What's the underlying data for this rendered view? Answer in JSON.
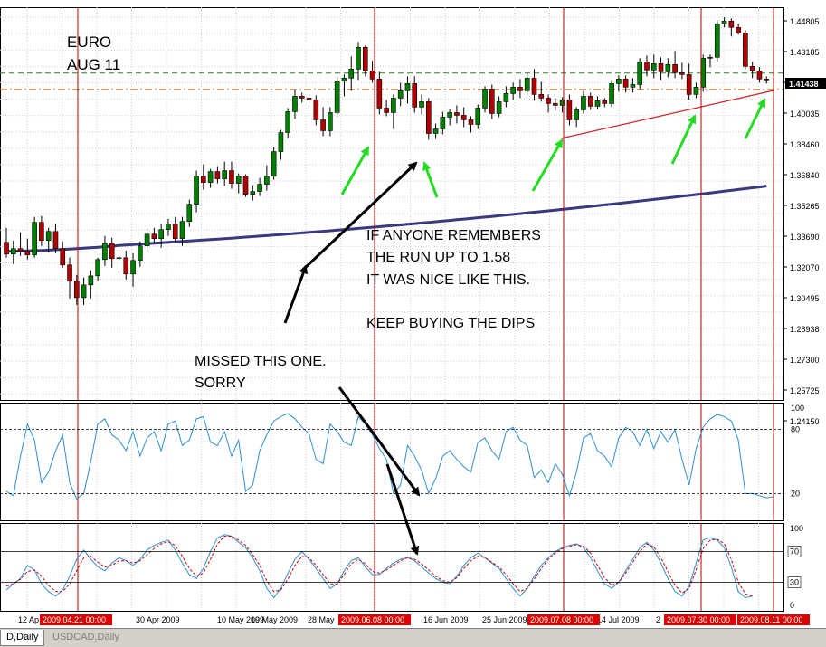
{
  "chart_data": {
    "type": "candlestick",
    "symbol_note": [
      "EURO",
      "AUG 11"
    ],
    "y_ticks": [
      "1.44805",
      "1.43185",
      "1.41438",
      "1.40035",
      "1.38460",
      "1.36840",
      "1.35265",
      "1.33690",
      "1.32070",
      "1.30495",
      "1.28938",
      "1.27300",
      "1.25725",
      "1.24150"
    ],
    "current_price": "1.41438",
    "x_labels": [
      "12 Ap",
      "30 Apr 2009",
      "10 May 2009",
      "19 May 2009",
      "28 May",
      "16 Jun 2009",
      "25 Jun 2009",
      "14 Jul 2009",
      "2"
    ],
    "date_markers": [
      "2009.04.21 00:00",
      "2009.06.08 00:00",
      "2009.07.08 00:00",
      "2009.07.30 00:00",
      "2009.08.11 00:00"
    ],
    "annotations": {
      "buy_dips": [
        "IF ANYONE REMEMBERS",
        "THE RUN UP TO 1.58",
        "IT WAS NICE LIKE THIS.",
        "",
        "KEEP BUYING THE DIPS"
      ],
      "missed": [
        "MISSED THIS ONE.",
        "SORRY"
      ]
    },
    "moving_average": {
      "from": 1.3195,
      "to": 1.3555
    },
    "candles": [
      {
        "o": 1.3245,
        "h": 1.3325,
        "l": 1.316,
        "c": 1.318
      },
      {
        "o": 1.318,
        "h": 1.3255,
        "l": 1.3125,
        "c": 1.321
      },
      {
        "o": 1.321,
        "h": 1.33,
        "l": 1.317,
        "c": 1.3195
      },
      {
        "o": 1.3195,
        "h": 1.3265,
        "l": 1.315,
        "c": 1.3175
      },
      {
        "o": 1.3175,
        "h": 1.3385,
        "l": 1.316,
        "c": 1.3355
      },
      {
        "o": 1.3355,
        "h": 1.339,
        "l": 1.3225,
        "c": 1.3255
      },
      {
        "o": 1.3255,
        "h": 1.3325,
        "l": 1.319,
        "c": 1.3305
      },
      {
        "o": 1.3305,
        "h": 1.3345,
        "l": 1.3185,
        "c": 1.321
      },
      {
        "o": 1.321,
        "h": 1.325,
        "l": 1.3105,
        "c": 1.312
      },
      {
        "o": 1.312,
        "h": 1.316,
        "l": 1.2935,
        "c": 1.303
      },
      {
        "o": 1.303,
        "h": 1.3065,
        "l": 1.29,
        "c": 1.294
      },
      {
        "o": 1.294,
        "h": 1.305,
        "l": 1.29,
        "c": 1.301
      },
      {
        "o": 1.301,
        "h": 1.309,
        "l": 1.2935,
        "c": 1.306
      },
      {
        "o": 1.306,
        "h": 1.316,
        "l": 1.303,
        "c": 1.315
      },
      {
        "o": 1.315,
        "h": 1.328,
        "l": 1.3115,
        "c": 1.324
      },
      {
        "o": 1.324,
        "h": 1.327,
        "l": 1.3105,
        "c": 1.3155
      },
      {
        "o": 1.3155,
        "h": 1.3205,
        "l": 1.3075,
        "c": 1.316
      },
      {
        "o": 1.316,
        "h": 1.32,
        "l": 1.304,
        "c": 1.307
      },
      {
        "o": 1.307,
        "h": 1.3185,
        "l": 1.3,
        "c": 1.3145
      },
      {
        "o": 1.3145,
        "h": 1.325,
        "l": 1.311,
        "c": 1.3225
      },
      {
        "o": 1.3225,
        "h": 1.332,
        "l": 1.3195,
        "c": 1.329
      },
      {
        "o": 1.329,
        "h": 1.3325,
        "l": 1.324,
        "c": 1.3265
      },
      {
        "o": 1.3265,
        "h": 1.3345,
        "l": 1.3215,
        "c": 1.3315
      },
      {
        "o": 1.3315,
        "h": 1.3375,
        "l": 1.328,
        "c": 1.3345
      },
      {
        "o": 1.3345,
        "h": 1.3385,
        "l": 1.3245,
        "c": 1.3265
      },
      {
        "o": 1.3265,
        "h": 1.3385,
        "l": 1.3225,
        "c": 1.336
      },
      {
        "o": 1.336,
        "h": 1.348,
        "l": 1.333,
        "c": 1.3455
      },
      {
        "o": 1.3455,
        "h": 1.364,
        "l": 1.341,
        "c": 1.361
      },
      {
        "o": 1.361,
        "h": 1.3675,
        "l": 1.3535,
        "c": 1.3575
      },
      {
        "o": 1.3575,
        "h": 1.365,
        "l": 1.3545,
        "c": 1.3635
      },
      {
        "o": 1.3635,
        "h": 1.3665,
        "l": 1.357,
        "c": 1.3595
      },
      {
        "o": 1.3595,
        "h": 1.369,
        "l": 1.3555,
        "c": 1.364
      },
      {
        "o": 1.364,
        "h": 1.369,
        "l": 1.354,
        "c": 1.357
      },
      {
        "o": 1.357,
        "h": 1.3625,
        "l": 1.3515,
        "c": 1.361
      },
      {
        "o": 1.361,
        "h": 1.362,
        "l": 1.3495,
        "c": 1.351
      },
      {
        "o": 1.351,
        "h": 1.356,
        "l": 1.3475,
        "c": 1.3525
      },
      {
        "o": 1.3525,
        "h": 1.36,
        "l": 1.35,
        "c": 1.3565
      },
      {
        "o": 1.3565,
        "h": 1.367,
        "l": 1.353,
        "c": 1.361
      },
      {
        "o": 1.361,
        "h": 1.377,
        "l": 1.359,
        "c": 1.3745
      },
      {
        "o": 1.3745,
        "h": 1.3865,
        "l": 1.37,
        "c": 1.385
      },
      {
        "o": 1.385,
        "h": 1.3985,
        "l": 1.382,
        "c": 1.3965
      },
      {
        "o": 1.3965,
        "h": 1.4085,
        "l": 1.3925,
        "c": 1.405
      },
      {
        "o": 1.405,
        "h": 1.407,
        "l": 1.4015,
        "c": 1.404
      },
      {
        "o": 1.404,
        "h": 1.406,
        "l": 1.401,
        "c": 1.403
      },
      {
        "o": 1.403,
        "h": 1.4055,
        "l": 1.389,
        "c": 1.392
      },
      {
        "o": 1.392,
        "h": 1.399,
        "l": 1.383,
        "c": 1.386
      },
      {
        "o": 1.386,
        "h": 1.399,
        "l": 1.383,
        "c": 1.396
      },
      {
        "o": 1.396,
        "h": 1.416,
        "l": 1.394,
        "c": 1.4135
      },
      {
        "o": 1.4135,
        "h": 1.417,
        "l": 1.405,
        "c": 1.415
      },
      {
        "o": 1.415,
        "h": 1.427,
        "l": 1.408,
        "c": 1.42
      },
      {
        "o": 1.42,
        "h": 1.435,
        "l": 1.414,
        "c": 1.432
      },
      {
        "o": 1.432,
        "h": 1.433,
        "l": 1.416,
        "c": 1.419
      },
      {
        "o": 1.419,
        "h": 1.4245,
        "l": 1.4125,
        "c": 1.4145
      },
      {
        "o": 1.4145,
        "h": 1.4185,
        "l": 1.395,
        "c": 1.3985
      },
      {
        "o": 1.3985,
        "h": 1.403,
        "l": 1.394,
        "c": 1.396
      },
      {
        "o": 1.396,
        "h": 1.406,
        "l": 1.387,
        "c": 1.404
      },
      {
        "o": 1.404,
        "h": 1.4125,
        "l": 1.3995,
        "c": 1.408
      },
      {
        "o": 1.408,
        "h": 1.416,
        "l": 1.401,
        "c": 1.412
      },
      {
        "o": 1.412,
        "h": 1.416,
        "l": 1.396,
        "c": 1.399
      },
      {
        "o": 1.399,
        "h": 1.406,
        "l": 1.395,
        "c": 1.402
      },
      {
        "o": 1.402,
        "h": 1.404,
        "l": 1.381,
        "c": 1.3845
      },
      {
        "o": 1.3845,
        "h": 1.39,
        "l": 1.3815,
        "c": 1.387
      },
      {
        "o": 1.387,
        "h": 1.3965,
        "l": 1.384,
        "c": 1.3935
      },
      {
        "o": 1.3935,
        "h": 1.398,
        "l": 1.389,
        "c": 1.396
      },
      {
        "o": 1.396,
        "h": 1.4,
        "l": 1.39,
        "c": 1.3945
      },
      {
        "o": 1.3945,
        "h": 1.399,
        "l": 1.388,
        "c": 1.392
      },
      {
        "o": 1.392,
        "h": 1.394,
        "l": 1.385,
        "c": 1.3895
      },
      {
        "o": 1.3895,
        "h": 1.4005,
        "l": 1.387,
        "c": 1.3985
      },
      {
        "o": 1.3985,
        "h": 1.4105,
        "l": 1.396,
        "c": 1.409
      },
      {
        "o": 1.409,
        "h": 1.4115,
        "l": 1.3925,
        "c": 1.3955
      },
      {
        "o": 1.3955,
        "h": 1.405,
        "l": 1.3935,
        "c": 1.402
      },
      {
        "o": 1.402,
        "h": 1.4105,
        "l": 1.399,
        "c": 1.4065
      },
      {
        "o": 1.4065,
        "h": 1.4125,
        "l": 1.403,
        "c": 1.41
      },
      {
        "o": 1.41,
        "h": 1.4145,
        "l": 1.404,
        "c": 1.408
      },
      {
        "o": 1.408,
        "h": 1.418,
        "l": 1.4055,
        "c": 1.415
      },
      {
        "o": 1.415,
        "h": 1.42,
        "l": 1.4025,
        "c": 1.406
      },
      {
        "o": 1.406,
        "h": 1.413,
        "l": 1.402,
        "c": 1.404
      },
      {
        "o": 1.404,
        "h": 1.406,
        "l": 1.396,
        "c": 1.401
      },
      {
        "o": 1.401,
        "h": 1.404,
        "l": 1.397,
        "c": 1.4
      },
      {
        "o": 1.4,
        "h": 1.4045,
        "l": 1.396,
        "c": 1.403
      },
      {
        "o": 1.403,
        "h": 1.406,
        "l": 1.389,
        "c": 1.392
      },
      {
        "o": 1.392,
        "h": 1.399,
        "l": 1.388,
        "c": 1.3975
      },
      {
        "o": 1.3975,
        "h": 1.408,
        "l": 1.3955,
        "c": 1.405
      },
      {
        "o": 1.405,
        "h": 1.407,
        "l": 1.3975,
        "c": 1.3995
      },
      {
        "o": 1.3995,
        "h": 1.405,
        "l": 1.398,
        "c": 1.4025
      },
      {
        "o": 1.4025,
        "h": 1.404,
        "l": 1.399,
        "c": 1.401
      },
      {
        "o": 1.401,
        "h": 1.414,
        "l": 1.399,
        "c": 1.412
      },
      {
        "o": 1.412,
        "h": 1.4165,
        "l": 1.4075,
        "c": 1.4145
      },
      {
        "o": 1.4145,
        "h": 1.4165,
        "l": 1.407,
        "c": 1.41
      },
      {
        "o": 1.41,
        "h": 1.415,
        "l": 1.407,
        "c": 1.4115
      },
      {
        "o": 1.4115,
        "h": 1.426,
        "l": 1.409,
        "c": 1.424
      },
      {
        "o": 1.424,
        "h": 1.4275,
        "l": 1.416,
        "c": 1.4195
      },
      {
        "o": 1.4195,
        "h": 1.428,
        "l": 1.415,
        "c": 1.423
      },
      {
        "o": 1.423,
        "h": 1.4265,
        "l": 1.414,
        "c": 1.4185
      },
      {
        "o": 1.4185,
        "h": 1.426,
        "l": 1.4155,
        "c": 1.4225
      },
      {
        "o": 1.4225,
        "h": 1.43,
        "l": 1.415,
        "c": 1.418
      },
      {
        "o": 1.418,
        "h": 1.4235,
        "l": 1.4145,
        "c": 1.417
      },
      {
        "o": 1.417,
        "h": 1.423,
        "l": 1.403,
        "c": 1.406
      },
      {
        "o": 1.406,
        "h": 1.4125,
        "l": 1.404,
        "c": 1.41
      },
      {
        "o": 1.41,
        "h": 1.428,
        "l": 1.4075,
        "c": 1.426
      },
      {
        "o": 1.426,
        "h": 1.428,
        "l": 1.421,
        "c": 1.4265
      },
      {
        "o": 1.4265,
        "h": 1.447,
        "l": 1.424,
        "c": 1.445
      },
      {
        "o": 1.445,
        "h": 1.4485,
        "l": 1.443,
        "c": 1.4465
      },
      {
        "o": 1.4465,
        "h": 1.448,
        "l": 1.438,
        "c": 1.443
      },
      {
        "o": 1.443,
        "h": 1.445,
        "l": 1.439,
        "c": 1.44
      },
      {
        "o": 1.44,
        "h": 1.4415,
        "l": 1.42,
        "c": 1.4215
      },
      {
        "o": 1.4215,
        "h": 1.424,
        "l": 1.415,
        "c": 1.419
      },
      {
        "o": 1.419,
        "h": 1.421,
        "l": 1.4125,
        "c": 1.4145
      },
      {
        "o": 1.4145,
        "h": 1.416,
        "l": 1.412,
        "c": 1.4144
      }
    ],
    "stochastic_levels": [
      "100",
      "80",
      "20"
    ],
    "stochastic": [
      22,
      18,
      55,
      85,
      70,
      30,
      40,
      60,
      75,
      30,
      15,
      20,
      50,
      85,
      90,
      75,
      70,
      60,
      78,
      55,
      72,
      78,
      60,
      85,
      88,
      65,
      70,
      90,
      92,
      68,
      65,
      78,
      55,
      70,
      22,
      28,
      60,
      75,
      88,
      92,
      95,
      90,
      82,
      76,
      52,
      48,
      85,
      78,
      68,
      65,
      92,
      85,
      75,
      62,
      52,
      20,
      28,
      65,
      55,
      42,
      20,
      34,
      55,
      60,
      52,
      45,
      40,
      68,
      72,
      60,
      52,
      78,
      82,
      70,
      65,
      35,
      42,
      30,
      48,
      38,
      18,
      40,
      72,
      76,
      60,
      55,
      45,
      72,
      82,
      78,
      65,
      80,
      62,
      78,
      68,
      80,
      52,
      28,
      62,
      82,
      90,
      94,
      92,
      88,
      70,
      20,
      20,
      18,
      16,
      17
    ],
    "stochastic2_levels": [
      "100",
      "70",
      "30",
      "0"
    ],
    "stochastic2_k": [
      20,
      28,
      35,
      52,
      46,
      28,
      18,
      12,
      20,
      38,
      60,
      72,
      60,
      50,
      45,
      55,
      62,
      58,
      52,
      60,
      72,
      78,
      82,
      85,
      72,
      55,
      40,
      35,
      48,
      70,
      88,
      92,
      90,
      82,
      75,
      62,
      45,
      22,
      10,
      22,
      42,
      60,
      70,
      60,
      48,
      35,
      22,
      28,
      45,
      58,
      62,
      50,
      40,
      40,
      48,
      55,
      60,
      62,
      58,
      50,
      42,
      35,
      30,
      28,
      38,
      52,
      62,
      68,
      62,
      55,
      48,
      35,
      22,
      12,
      22,
      38,
      52,
      62,
      70,
      75,
      78,
      80,
      75,
      62,
      45,
      28,
      22,
      30,
      45,
      60,
      75,
      82,
      72,
      55,
      35,
      18,
      12,
      25,
      55,
      85,
      88,
      85,
      75,
      50,
      18,
      10,
      12
    ],
    "stochastic2_d": [
      25,
      28,
      34,
      44,
      46,
      38,
      26,
      18,
      18,
      28,
      45,
      62,
      64,
      56,
      50,
      52,
      58,
      58,
      55,
      58,
      66,
      74,
      80,
      83,
      78,
      64,
      48,
      38,
      42,
      60,
      80,
      90,
      90,
      85,
      78,
      66,
      52,
      32,
      18,
      20,
      34,
      52,
      64,
      62,
      52,
      40,
      28,
      28,
      40,
      54,
      60,
      54,
      44,
      42,
      46,
      52,
      58,
      62,
      60,
      54,
      46,
      38,
      32,
      30,
      36,
      48,
      58,
      64,
      62,
      56,
      50,
      40,
      28,
      18,
      22,
      34,
      48,
      60,
      68,
      74,
      77,
      79,
      77,
      68,
      52,
      36,
      26,
      30,
      42,
      56,
      70,
      80,
      76,
      62,
      44,
      26,
      16,
      22,
      46,
      74,
      85,
      86,
      80,
      60,
      30,
      15,
      12
    ],
    "annotation_colors": {
      "grid": "#000000",
      "candle_up": "#008000",
      "candle_down": "#b00000",
      "ma": "#3b3880",
      "stoch": "#2c8fd4",
      "signal": "#cc0000",
      "markers": "#b30000",
      "green_arrows": "#22dd22",
      "hline_green": "#2f7f2f",
      "hline_orange": "#e07a2a"
    }
  },
  "tabs": {
    "active": "D,Daily",
    "inactive": "USDCAD,Daily"
  }
}
